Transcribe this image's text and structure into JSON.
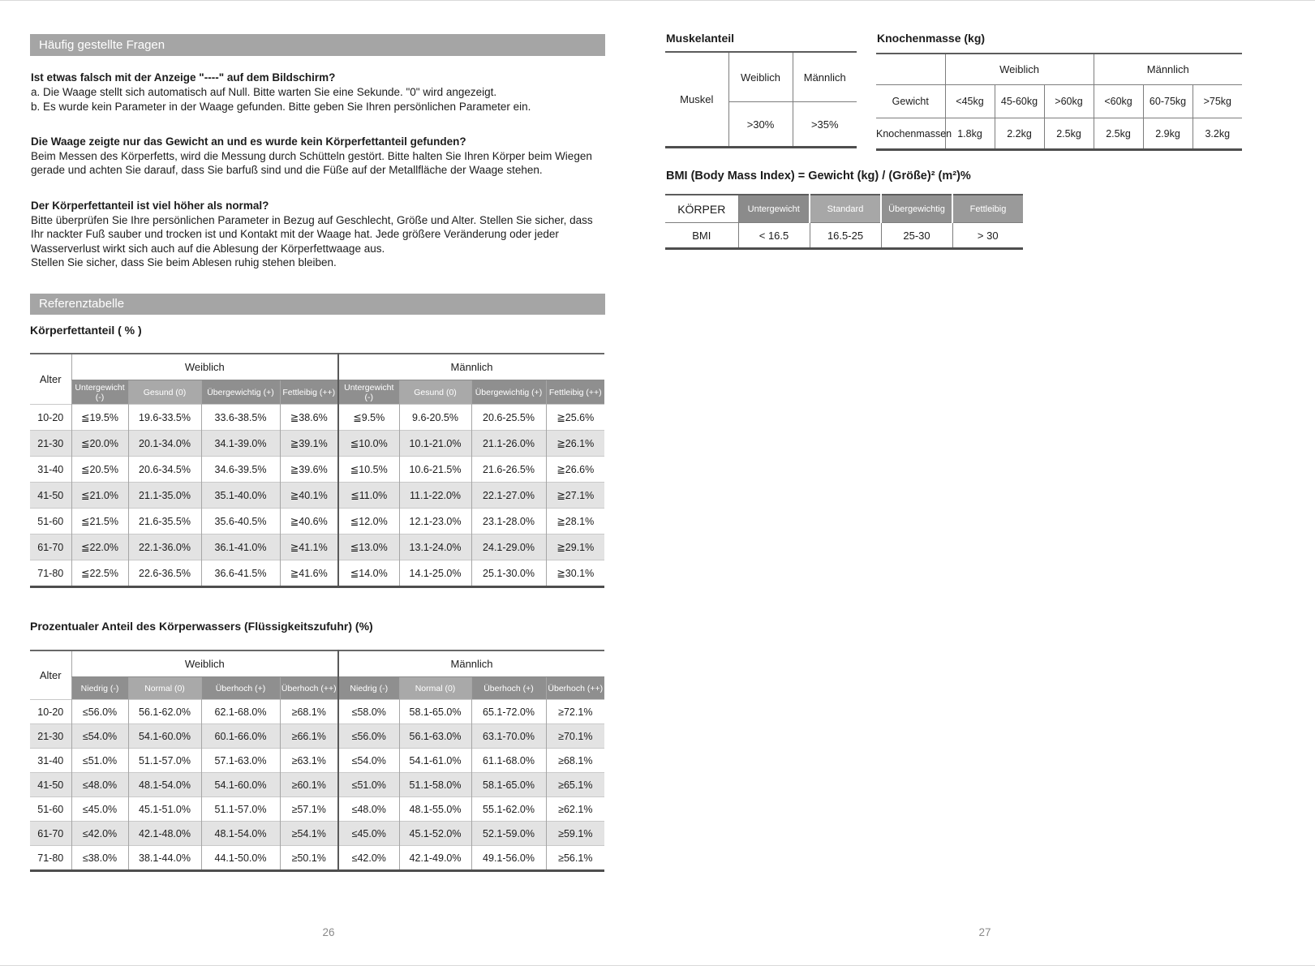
{
  "left": {
    "faq": {
      "header": "Häufig gestellte Fragen",
      "questions": [
        {
          "question": "Ist etwas falsch mit der Anzeige \"----\" auf dem Bildschirm?",
          "answer": [
            "a. Die Waage stellt sich automatisch auf Null. Bitte warten Sie eine Sekunde. \"0\" wird angezeigt.",
            "b. Es wurde kein Parameter in der Waage gefunden. Bitte geben Sie Ihren persönlichen Parameter ein."
          ]
        },
        {
          "question": "Die Waage zeigte nur das Gewicht an und es wurde kein Körperfettanteil gefunden?",
          "answer": [
            "Beim Messen des Körperfetts, wird die Messung durch Schütteln gestört. Bitte halten Sie Ihren Körper beim Wiegen gerade und achten Sie darauf, dass Sie barfuß sind und die Füße auf der Metallfläche der Waage stehen."
          ]
        },
        {
          "question": "Der Körperfettanteil ist viel höher als normal?",
          "answer": [
            "Bitte überprüfen Sie Ihre persönlichen Parameter in Bezug auf Geschlecht, Größe und Alter. Stellen Sie sicher, dass Ihr nackter Fuß sauber und trocken ist und Kontakt mit der Waage hat. Jede größere Veränderung oder jeder Wasserverlust wirkt sich auch auf die Ablesung der Körperfettwaage aus.",
            "Stellen Sie sicher, dass Sie beim Ablesen ruhig stehen bleiben."
          ]
        }
      ]
    },
    "reference_header": "Referenztabelle",
    "fat_table": {
      "title": "Körperfettanteil ( % )",
      "corner": "Alter",
      "groups": [
        "Weiblich",
        "Männlich"
      ],
      "sub_headers": [
        "Untergewicht (-)",
        "Gesund (0)",
        "Übergewichtig (+)",
        "Fettleibig (++)",
        "Untergewicht (-)",
        "Gesund (0)",
        "Übergewichtig (+)",
        "Fettleibig (++)"
      ],
      "rows": [
        {
          "age": "10-20",
          "values": [
            "≦19.5%",
            "19.6-33.5%",
            "33.6-38.5%",
            "≧38.6%",
            "≦9.5%",
            "9.6-20.5%",
            "20.6-25.5%",
            "≧25.6%"
          ]
        },
        {
          "age": "21-30",
          "values": [
            "≦20.0%",
            "20.1-34.0%",
            "34.1-39.0%",
            "≧39.1%",
            "≦10.0%",
            "10.1-21.0%",
            "21.1-26.0%",
            "≧26.1%"
          ]
        },
        {
          "age": "31-40",
          "values": [
            "≦20.5%",
            "20.6-34.5%",
            "34.6-39.5%",
            "≧39.6%",
            "≦10.5%",
            "10.6-21.5%",
            "21.6-26.5%",
            "≧26.6%"
          ]
        },
        {
          "age": "41-50",
          "values": [
            "≦21.0%",
            "21.1-35.0%",
            "35.1-40.0%",
            "≧40.1%",
            "≦11.0%",
            "11.1-22.0%",
            "22.1-27.0%",
            "≧27.1%"
          ]
        },
        {
          "age": "51-60",
          "values": [
            "≦21.5%",
            "21.6-35.5%",
            "35.6-40.5%",
            "≧40.6%",
            "≦12.0%",
            "12.1-23.0%",
            "23.1-28.0%",
            "≧28.1%"
          ]
        },
        {
          "age": "61-70",
          "values": [
            "≦22.0%",
            "22.1-36.0%",
            "36.1-41.0%",
            "≧41.1%",
            "≦13.0%",
            "13.1-24.0%",
            "24.1-29.0%",
            "≧29.1%"
          ]
        },
        {
          "age": "71-80",
          "values": [
            "≦22.5%",
            "22.6-36.5%",
            "36.6-41.5%",
            "≧41.6%",
            "≦14.0%",
            "14.1-25.0%",
            "25.1-30.0%",
            "≧30.1%"
          ]
        }
      ]
    },
    "water_table": {
      "title": "Prozentualer Anteil des Körperwassers (Flüssigkeitszufuhr) (%)",
      "corner": "Alter",
      "groups": [
        "Weiblich",
        "Männlich"
      ],
      "sub_headers": [
        "Niedrig (-)",
        "Normal (0)",
        "Überhoch (+)",
        "Überhoch (++)",
        "Niedrig (-)",
        "Normal (0)",
        "Überhoch (+)",
        "Überhoch (++)"
      ],
      "rows": [
        {
          "age": "10-20",
          "values": [
            "≤56.0%",
            "56.1-62.0%",
            "62.1-68.0%",
            "≥68.1%",
            "≤58.0%",
            "58.1-65.0%",
            "65.1-72.0%",
            "≥72.1%"
          ]
        },
        {
          "age": "21-30",
          "values": [
            "≤54.0%",
            "54.1-60.0%",
            "60.1-66.0%",
            "≥66.1%",
            "≤56.0%",
            "56.1-63.0%",
            "63.1-70.0%",
            "≥70.1%"
          ]
        },
        {
          "age": "31-40",
          "values": [
            "≤51.0%",
            "51.1-57.0%",
            "57.1-63.0%",
            "≥63.1%",
            "≤54.0%",
            "54.1-61.0%",
            "61.1-68.0%",
            "≥68.1%"
          ]
        },
        {
          "age": "41-50",
          "values": [
            "≤48.0%",
            "48.1-54.0%",
            "54.1-60.0%",
            "≥60.1%",
            "≤51.0%",
            "51.1-58.0%",
            "58.1-65.0%",
            "≥65.1%"
          ]
        },
        {
          "age": "51-60",
          "values": [
            "≤45.0%",
            "45.1-51.0%",
            "51.1-57.0%",
            "≥57.1%",
            "≤48.0%",
            "48.1-55.0%",
            "55.1-62.0%",
            "≥62.1%"
          ]
        },
        {
          "age": "61-70",
          "values": [
            "≤42.0%",
            "42.1-48.0%",
            "48.1-54.0%",
            "≥54.1%",
            "≤45.0%",
            "45.1-52.0%",
            "52.1-59.0%",
            "≥59.1%"
          ]
        },
        {
          "age": "71-80",
          "values": [
            "≤38.0%",
            "38.1-44.0%",
            "44.1-50.0%",
            "≥50.1%",
            "≤42.0%",
            "42.1-49.0%",
            "49.1-56.0%",
            "≥56.1%"
          ]
        }
      ]
    },
    "page_number": "26"
  },
  "right": {
    "muscle_table": {
      "title": "Muskelanteil",
      "row_label": "Muskel",
      "headers": [
        "Weiblich",
        "Männlich"
      ],
      "values": [
        ">30%",
        ">35%"
      ]
    },
    "bone_table": {
      "title": "Knochenmasse (kg)",
      "groups": [
        "Weiblich",
        "Männlich"
      ],
      "weight_label": "Gewicht",
      "mass_label": "Knochenmassen",
      "weights": [
        "<45kg",
        "45-60kg",
        ">60kg",
        "<60kg",
        "60-75kg",
        ">75kg"
      ],
      "masses": [
        "1.8kg",
        "2.2kg",
        "2.5kg",
        "2.5kg",
        "2.9kg",
        "3.2kg"
      ]
    },
    "bmi_table": {
      "title": "BMI (Body Mass Index) = Gewicht (kg) / (Größe)² (m²)%",
      "corner": "KÖRPER",
      "headers": [
        "Untergewicht",
        "Standard",
        "Übergewichtig",
        "Fettleibig"
      ],
      "row_label": "BMI",
      "values": [
        "< 16.5",
        "16.5-25",
        "25-30",
        "> 30"
      ]
    },
    "page_number": "27"
  },
  "colors": {
    "section_bar": "#a5a5a5",
    "subheader_dark": "#8f8f8f",
    "subheader_light": "#a9a9a9",
    "row_stripe": "#e3e3e3"
  }
}
